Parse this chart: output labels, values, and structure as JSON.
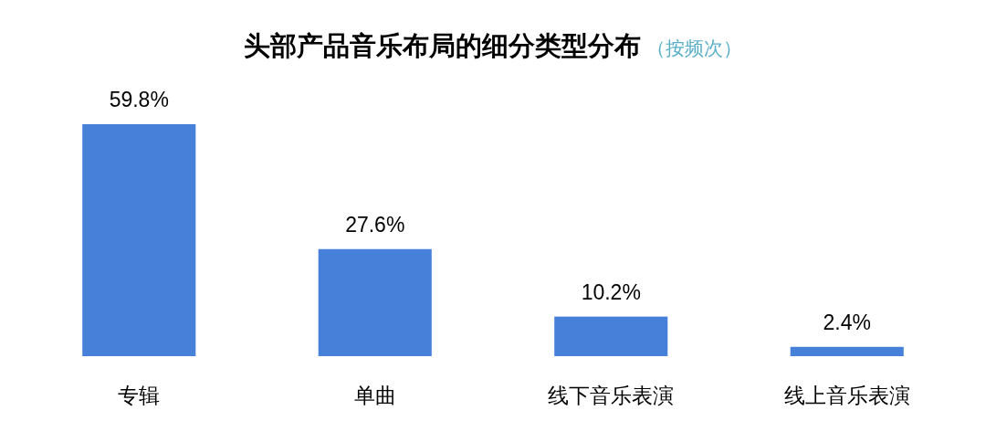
{
  "chart_data": {
    "type": "bar",
    "title": "头部产品音乐布局的细分类型分布",
    "subtitle": "（按频次）",
    "categories": [
      "专辑",
      "单曲",
      "线下音乐表演",
      "线上音乐表演"
    ],
    "values": [
      59.8,
      27.6,
      10.2,
      2.4
    ],
    "color": "#4680d8",
    "value_labels": [
      "59.8%",
      "27.6%",
      "10.2%",
      "2.4%"
    ]
  }
}
